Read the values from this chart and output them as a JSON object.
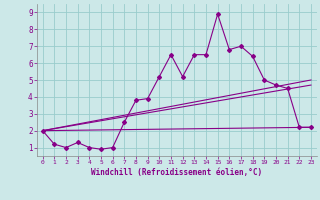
{
  "xlabel": "Windchill (Refroidissement éolien,°C)",
  "xlim": [
    0,
    23
  ],
  "ylim": [
    1,
    9
  ],
  "background_color": "#cce8e8",
  "grid_color": "#99cccc",
  "line_color": "#880088",
  "line1_x": [
    0,
    1,
    2,
    3,
    4,
    5,
    6,
    7,
    8,
    9,
    10,
    11,
    12,
    13,
    14,
    15,
    16,
    17,
    18,
    19,
    20,
    21,
    22,
    23
  ],
  "line1_y": [
    2.0,
    1.2,
    1.0,
    1.3,
    1.0,
    0.9,
    1.0,
    2.5,
    3.8,
    3.9,
    5.2,
    6.5,
    5.2,
    6.5,
    6.5,
    8.9,
    6.8,
    7.0,
    6.4,
    5.0,
    4.7,
    4.5,
    2.2,
    2.2
  ],
  "line2": [
    2.0,
    5.0
  ],
  "line3": [
    2.0,
    4.7
  ],
  "line4": [
    2.0,
    2.2
  ],
  "xtick_fontsize": 4.5,
  "ytick_fontsize": 5.5
}
